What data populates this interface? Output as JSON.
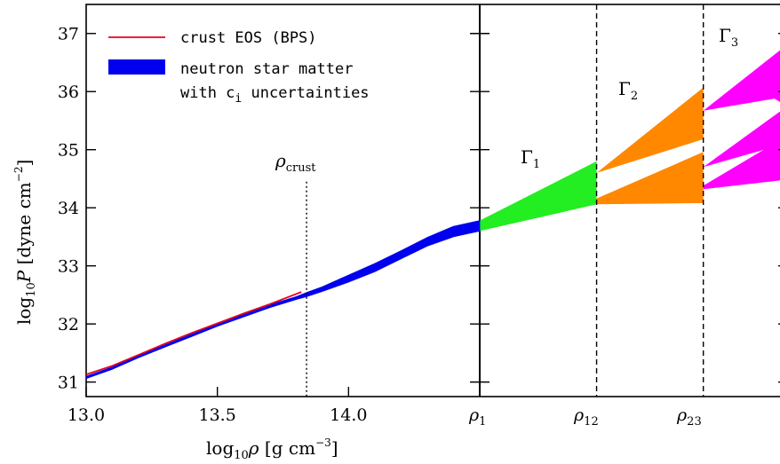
{
  "chart_data": {
    "type": "area",
    "xlabel": "log10ρ [g cm⁻³]",
    "ylabel": "log10P [dyne cm⁻²]",
    "xlim": [
      13.0,
      14.5
    ],
    "ylim": [
      30.75,
      37.5
    ],
    "left_panel_xlim": [
      13.0,
      14.0
    ],
    "y_ticks": [
      31,
      32,
      33,
      34,
      35,
      36,
      37
    ],
    "x_tick_labels": [
      "13.0",
      "13.5",
      "14.0",
      "ρ1",
      "ρ12",
      "ρ23"
    ],
    "legend_placement": "top-left",
    "series": [
      {
        "name": "crust EOS (BPS)",
        "kind": "line",
        "color": "#e8001a",
        "x": [
          13.0,
          13.1,
          13.2,
          13.3,
          13.4,
          13.5,
          13.6,
          13.7,
          13.78,
          13.82
        ],
        "y": [
          31.13,
          31.28,
          31.47,
          31.66,
          31.84,
          32.01,
          32.18,
          32.34,
          32.48,
          32.55
        ]
      },
      {
        "name": "neutron star matter with ci uncertainties",
        "kind": "band",
        "color": "#0000ee",
        "x": [
          13.0,
          13.1,
          13.2,
          13.3,
          13.4,
          13.5,
          13.6,
          13.7,
          13.8,
          13.84,
          13.9,
          14.0,
          14.1,
          14.2,
          14.3,
          14.4,
          14.5
        ],
        "y_lower": [
          31.06,
          31.22,
          31.42,
          31.6,
          31.78,
          31.96,
          32.12,
          32.28,
          32.42,
          32.47,
          32.56,
          32.72,
          32.9,
          33.12,
          33.34,
          33.5,
          33.6
        ],
        "y_upper": [
          31.1,
          31.26,
          31.46,
          31.64,
          31.82,
          32.0,
          32.17,
          32.33,
          32.47,
          32.54,
          32.64,
          32.84,
          33.04,
          33.26,
          33.49,
          33.68,
          33.78
        ]
      }
    ],
    "polytropes": [
      {
        "label": "Γ1",
        "color": "#22ee22",
        "regions": [
          [
            [
              14.5,
              33.6
            ],
            [
              14.5,
              33.78
            ],
            [
              14.96,
              34.8
            ],
            [
              14.96,
              34.06
            ]
          ]
        ]
      },
      {
        "label": "Γ2",
        "color": "#ff8800",
        "regions": [
          [
            [
              14.96,
              34.6
            ],
            [
              15.38,
              36.07
            ],
            [
              15.38,
              35.18
            ]
          ],
          [
            [
              14.96,
              34.06
            ],
            [
              14.96,
              34.16
            ],
            [
              15.38,
              34.96
            ],
            [
              15.38,
              34.08
            ]
          ]
        ]
      },
      {
        "label": "Γ3",
        "color": "#ff00ff",
        "regions": [
          [
            [
              15.38,
              35.67
            ],
            [
              15.78,
              37.05
            ],
            [
              15.78,
              35.55
            ],
            [
              15.66,
              35.88
            ]
          ],
          [
            [
              15.38,
              34.7
            ],
            [
              15.78,
              35.97
            ],
            [
              15.78,
              35.2
            ]
          ],
          [
            [
              15.38,
              34.32
            ],
            [
              15.38,
              34.38
            ],
            [
              15.78,
              35.42
            ],
            [
              15.78,
              34.52
            ]
          ]
        ]
      }
    ],
    "annotations": [
      {
        "text": "ρcrust",
        "x": 13.84
      },
      {
        "text": "Γ1"
      },
      {
        "text": "Γ2"
      },
      {
        "text": "Γ3"
      }
    ]
  },
  "legend": {
    "items": [
      {
        "label": "crust EOS (BPS)",
        "color": "#e8001a"
      },
      {
        "label_line1": "neutron star matter",
        "label_line2_pre": "with c",
        "label_line2_sub": "i",
        "label_line2_post": " uncertainties",
        "color": "#0000ee"
      }
    ]
  },
  "labels": {
    "x_axis": {
      "main": "log",
      "sub": "10",
      "var": "ρ",
      "unit_pre": " [g cm",
      "unit_sup": "−3",
      "unit_post": "]"
    },
    "y_axis": {
      "main": "log",
      "sub": "10",
      "var": "P",
      "unit_pre": " [dyne cm",
      "unit_sup": "−2",
      "unit_post": "]"
    },
    "rho_crust": {
      "var": "ρ",
      "sub": "crust"
    },
    "gamma1": {
      "var": "Γ",
      "sub": "1"
    },
    "gamma2": {
      "var": "Γ",
      "sub": "2"
    },
    "gamma3": {
      "var": "Γ",
      "sub": "3"
    },
    "rho1": {
      "var": "ρ",
      "sub": "1"
    },
    "rho12": {
      "var": "ρ",
      "sub": "12"
    },
    "rho23": {
      "var": "ρ",
      "sub": "23"
    }
  }
}
